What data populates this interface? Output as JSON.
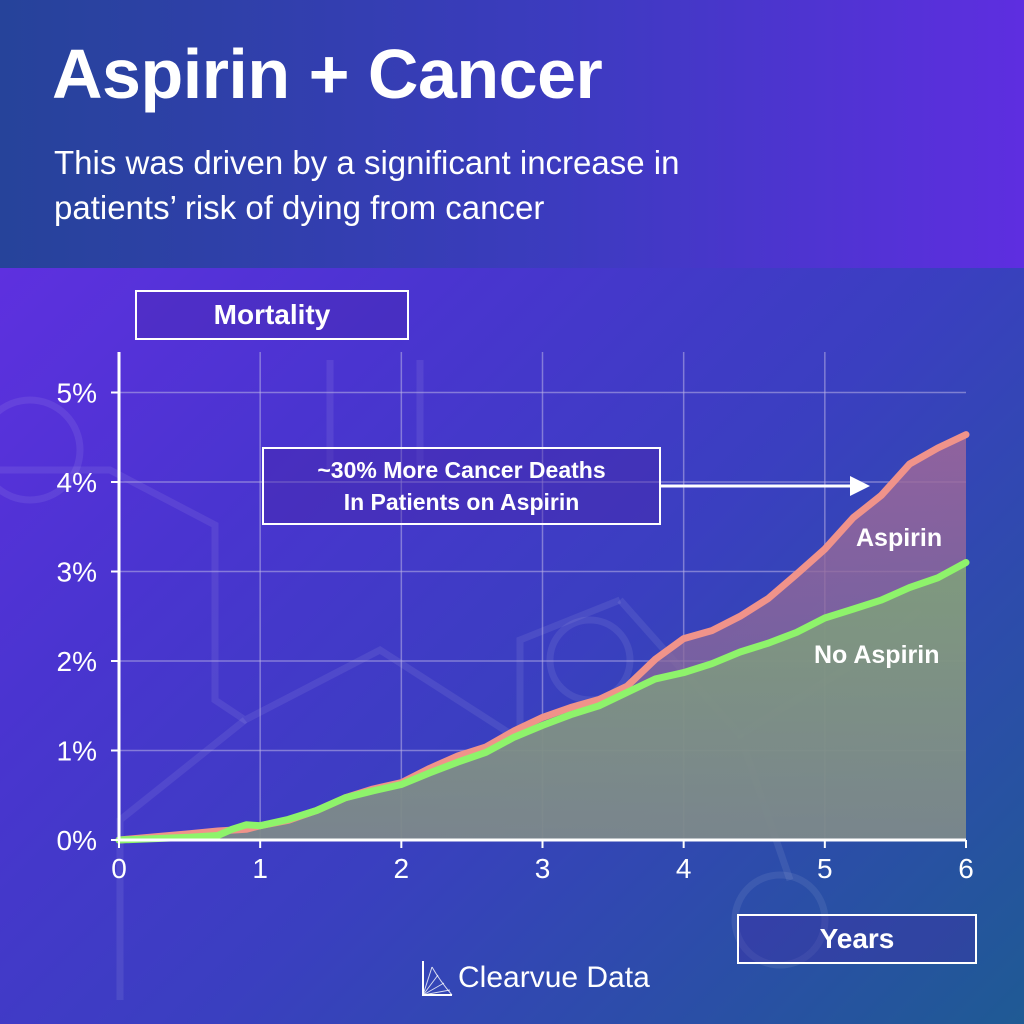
{
  "title": "Aspirin + Cancer",
  "subtitle_line1": "This was driven by a significant increase in",
  "subtitle_line2": "patients’ risk of dying from cancer",
  "annotation_line1": "~30% More Cancer Deaths",
  "annotation_line2": "In Patients on Aspirin",
  "brand": "Clearvue Data",
  "colors": {
    "aspirin": "#f0938a",
    "no_aspirin": "#8ef36b",
    "grid": "#b9b3e6"
  },
  "chart_data": {
    "type": "area",
    "xlabel": "Years",
    "ylabel": "Mortality",
    "xlim": [
      0,
      6
    ],
    "ylim": [
      0,
      5.5
    ],
    "x_ticks": [
      "0",
      "1",
      "2",
      "3",
      "4",
      "5",
      "6"
    ],
    "y_ticks": [
      "0%",
      "1%",
      "2%",
      "3%",
      "4%",
      "5%"
    ],
    "grid": true,
    "series": [
      {
        "name": "Aspirin",
        "x": [
          0,
          0.5,
          0.7,
          0.9,
          1.0,
          1.2,
          1.4,
          1.6,
          1.8,
          2.0,
          2.2,
          2.4,
          2.6,
          2.8,
          3.0,
          3.2,
          3.4,
          3.6,
          3.8,
          4.0,
          4.2,
          4.4,
          4.6,
          4.8,
          5.0,
          5.2,
          5.4,
          5.6,
          5.8,
          6.0
        ],
        "y": [
          0,
          0.07,
          0.1,
          0.12,
          0.16,
          0.22,
          0.33,
          0.47,
          0.57,
          0.64,
          0.8,
          0.94,
          1.04,
          1.22,
          1.37,
          1.48,
          1.57,
          1.72,
          2.02,
          2.25,
          2.34,
          2.5,
          2.7,
          2.97,
          3.25,
          3.6,
          3.85,
          4.2,
          4.38,
          4.53
        ]
      },
      {
        "name": "No Aspirin",
        "x": [
          0,
          0.5,
          0.7,
          0.8,
          0.9,
          1.0,
          1.2,
          1.4,
          1.6,
          1.8,
          2.0,
          2.2,
          2.4,
          2.6,
          2.8,
          3.0,
          3.2,
          3.4,
          3.6,
          3.8,
          4.0,
          4.2,
          4.4,
          4.6,
          4.8,
          5.0,
          5.2,
          5.4,
          5.6,
          5.8,
          6.0
        ],
        "y": [
          0,
          0.03,
          0.05,
          0.12,
          0.17,
          0.16,
          0.23,
          0.33,
          0.47,
          0.55,
          0.62,
          0.75,
          0.87,
          0.98,
          1.15,
          1.28,
          1.4,
          1.5,
          1.65,
          1.8,
          1.87,
          1.97,
          2.1,
          2.2,
          2.32,
          2.48,
          2.58,
          2.68,
          2.82,
          2.93,
          3.1
        ]
      }
    ]
  }
}
